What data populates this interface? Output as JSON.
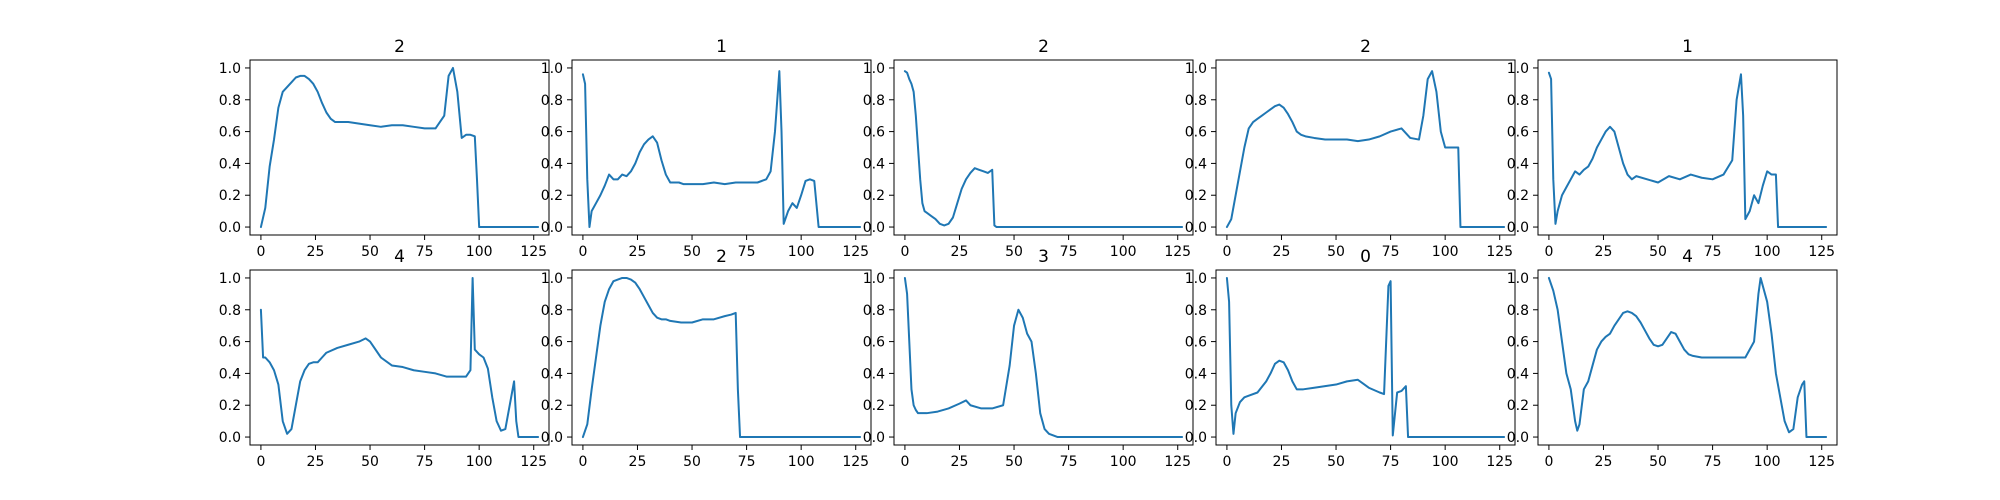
{
  "chart_data": [
    {
      "type": "line",
      "title": "2",
      "xlim": [
        -5,
        132
      ],
      "ylim": [
        -0.05,
        1.05
      ],
      "xticks": [
        0,
        25,
        50,
        75,
        100,
        125
      ],
      "yticks": [
        0.0,
        0.2,
        0.4,
        0.6,
        0.8,
        1.0
      ],
      "color": "#1f77b4",
      "x": [
        0,
        2,
        4,
        6,
        8,
        10,
        12,
        14,
        16,
        18,
        20,
        22,
        24,
        26,
        28,
        30,
        32,
        34,
        36,
        40,
        45,
        50,
        55,
        60,
        65,
        70,
        75,
        80,
        84,
        86,
        88,
        90,
        92,
        94,
        96,
        98,
        99,
        100,
        110,
        120,
        127
      ],
      "y": [
        0.0,
        0.12,
        0.38,
        0.55,
        0.75,
        0.85,
        0.88,
        0.91,
        0.94,
        0.95,
        0.95,
        0.93,
        0.9,
        0.85,
        0.78,
        0.72,
        0.68,
        0.66,
        0.66,
        0.66,
        0.65,
        0.64,
        0.63,
        0.64,
        0.64,
        0.63,
        0.62,
        0.62,
        0.7,
        0.95,
        1.0,
        0.85,
        0.56,
        0.58,
        0.58,
        0.57,
        0.3,
        0.0,
        0.0,
        0.0,
        0.0
      ]
    },
    {
      "type": "line",
      "title": "1",
      "xlim": [
        -5,
        132
      ],
      "ylim": [
        -0.05,
        1.05
      ],
      "xticks": [
        0,
        25,
        50,
        75,
        100,
        125
      ],
      "yticks": [
        0.0,
        0.2,
        0.4,
        0.6,
        0.8,
        1.0
      ],
      "color": "#1f77b4",
      "x": [
        0,
        1,
        2,
        3,
        4,
        6,
        8,
        10,
        12,
        14,
        16,
        18,
        20,
        22,
        24,
        26,
        28,
        30,
        32,
        34,
        36,
        38,
        40,
        42,
        44,
        46,
        50,
        55,
        60,
        65,
        70,
        75,
        80,
        84,
        86,
        88,
        90,
        91,
        92,
        94,
        96,
        98,
        100,
        102,
        104,
        106,
        108,
        110,
        115,
        120,
        127
      ],
      "y": [
        0.96,
        0.9,
        0.3,
        0.0,
        0.1,
        0.15,
        0.2,
        0.26,
        0.33,
        0.3,
        0.3,
        0.33,
        0.32,
        0.35,
        0.4,
        0.47,
        0.52,
        0.55,
        0.57,
        0.53,
        0.42,
        0.33,
        0.28,
        0.28,
        0.28,
        0.27,
        0.27,
        0.27,
        0.28,
        0.27,
        0.28,
        0.28,
        0.28,
        0.3,
        0.35,
        0.6,
        0.98,
        0.6,
        0.02,
        0.1,
        0.15,
        0.12,
        0.2,
        0.29,
        0.3,
        0.29,
        0.0,
        0.0,
        0.0,
        0.0,
        0.0
      ]
    },
    {
      "type": "line",
      "title": "2",
      "xlim": [
        -5,
        132
      ],
      "ylim": [
        -0.05,
        1.05
      ],
      "xticks": [
        0,
        25,
        50,
        75,
        100,
        125
      ],
      "yticks": [
        0.0,
        0.2,
        0.4,
        0.6,
        0.8,
        1.0
      ],
      "color": "#1f77b4",
      "x": [
        0,
        1,
        2,
        3,
        4,
        5,
        6,
        7,
        8,
        9,
        10,
        12,
        14,
        16,
        18,
        20,
        22,
        24,
        26,
        28,
        30,
        32,
        34,
        36,
        38,
        40,
        41,
        42,
        50,
        60,
        70,
        80,
        90,
        100,
        110,
        120,
        127
      ],
      "y": [
        0.98,
        0.97,
        0.93,
        0.9,
        0.85,
        0.7,
        0.5,
        0.3,
        0.15,
        0.1,
        0.09,
        0.07,
        0.05,
        0.02,
        0.01,
        0.02,
        0.06,
        0.15,
        0.24,
        0.3,
        0.34,
        0.37,
        0.36,
        0.35,
        0.34,
        0.36,
        0.01,
        0.0,
        0.0,
        0.0,
        0.0,
        0.0,
        0.0,
        0.0,
        0.0,
        0.0,
        0.0
      ]
    },
    {
      "type": "line",
      "title": "2",
      "xlim": [
        -5,
        132
      ],
      "ylim": [
        -0.05,
        1.05
      ],
      "xticks": [
        0,
        25,
        50,
        75,
        100,
        125
      ],
      "yticks": [
        0.0,
        0.2,
        0.4,
        0.6,
        0.8,
        1.0
      ],
      "color": "#1f77b4",
      "x": [
        0,
        2,
        4,
        6,
        8,
        10,
        12,
        14,
        16,
        18,
        20,
        22,
        24,
        26,
        28,
        30,
        32,
        34,
        36,
        40,
        45,
        50,
        55,
        60,
        65,
        70,
        75,
        80,
        84,
        88,
        90,
        92,
        94,
        96,
        98,
        100,
        104,
        106,
        107,
        110,
        120,
        127
      ],
      "y": [
        0.0,
        0.05,
        0.2,
        0.35,
        0.5,
        0.62,
        0.66,
        0.68,
        0.7,
        0.72,
        0.74,
        0.76,
        0.77,
        0.75,
        0.71,
        0.66,
        0.6,
        0.58,
        0.57,
        0.56,
        0.55,
        0.55,
        0.55,
        0.54,
        0.55,
        0.57,
        0.6,
        0.62,
        0.56,
        0.55,
        0.7,
        0.93,
        0.98,
        0.85,
        0.6,
        0.5,
        0.5,
        0.5,
        0.0,
        0.0,
        0.0,
        0.0
      ]
    },
    {
      "type": "line",
      "title": "1",
      "xlim": [
        -5,
        132
      ],
      "ylim": [
        -0.05,
        1.05
      ],
      "xticks": [
        0,
        25,
        50,
        75,
        100,
        125
      ],
      "yticks": [
        0.0,
        0.2,
        0.4,
        0.6,
        0.8,
        1.0
      ],
      "color": "#1f77b4",
      "x": [
        0,
        1,
        2,
        3,
        4,
        6,
        8,
        10,
        12,
        14,
        16,
        18,
        20,
        22,
        24,
        26,
        28,
        30,
        32,
        34,
        36,
        38,
        40,
        45,
        50,
        55,
        60,
        65,
        70,
        75,
        80,
        84,
        86,
        88,
        89,
        90,
        92,
        94,
        96,
        98,
        100,
        102,
        104,
        105,
        110,
        120,
        127
      ],
      "y": [
        0.97,
        0.93,
        0.3,
        0.02,
        0.1,
        0.2,
        0.25,
        0.3,
        0.35,
        0.33,
        0.36,
        0.38,
        0.43,
        0.5,
        0.55,
        0.6,
        0.63,
        0.6,
        0.5,
        0.4,
        0.33,
        0.3,
        0.32,
        0.3,
        0.28,
        0.32,
        0.3,
        0.33,
        0.31,
        0.3,
        0.33,
        0.42,
        0.8,
        0.96,
        0.7,
        0.05,
        0.1,
        0.2,
        0.15,
        0.26,
        0.35,
        0.33,
        0.33,
        0.0,
        0.0,
        0.0,
        0.0
      ]
    },
    {
      "type": "line",
      "title": "4",
      "xlim": [
        -5,
        132
      ],
      "ylim": [
        -0.05,
        1.05
      ],
      "xticks": [
        0,
        25,
        50,
        75,
        100,
        125
      ],
      "yticks": [
        0.0,
        0.2,
        0.4,
        0.6,
        0.8,
        1.0
      ],
      "color": "#1f77b4",
      "x": [
        0,
        1,
        2,
        4,
        6,
        8,
        10,
        12,
        14,
        16,
        18,
        20,
        22,
        24,
        26,
        28,
        30,
        35,
        40,
        45,
        48,
        50,
        55,
        60,
        65,
        70,
        75,
        80,
        85,
        90,
        94,
        96,
        97,
        98,
        100,
        102,
        104,
        106,
        108,
        110,
        112,
        114,
        116,
        117,
        118,
        120,
        127
      ],
      "y": [
        0.8,
        0.5,
        0.5,
        0.47,
        0.42,
        0.33,
        0.1,
        0.02,
        0.05,
        0.2,
        0.35,
        0.42,
        0.46,
        0.47,
        0.47,
        0.5,
        0.53,
        0.56,
        0.58,
        0.6,
        0.62,
        0.6,
        0.5,
        0.45,
        0.44,
        0.42,
        0.41,
        0.4,
        0.38,
        0.38,
        0.38,
        0.42,
        1.0,
        0.55,
        0.52,
        0.5,
        0.43,
        0.25,
        0.1,
        0.04,
        0.05,
        0.2,
        0.35,
        0.1,
        0.0,
        0.0,
        0.0
      ]
    },
    {
      "type": "line",
      "title": "2",
      "xlim": [
        -5,
        132
      ],
      "ylim": [
        -0.05,
        1.05
      ],
      "xticks": [
        0,
        25,
        50,
        75,
        100,
        125
      ],
      "yticks": [
        0.0,
        0.2,
        0.4,
        0.6,
        0.8,
        1.0
      ],
      "color": "#1f77b4",
      "x": [
        0,
        2,
        4,
        6,
        8,
        10,
        12,
        14,
        16,
        18,
        20,
        22,
        24,
        26,
        28,
        30,
        32,
        34,
        36,
        38,
        40,
        45,
        50,
        55,
        60,
        65,
        68,
        70,
        71,
        72,
        80,
        90,
        100,
        110,
        120,
        127
      ],
      "y": [
        0.0,
        0.08,
        0.3,
        0.5,
        0.7,
        0.85,
        0.93,
        0.98,
        0.99,
        1.0,
        1.0,
        0.99,
        0.97,
        0.93,
        0.88,
        0.83,
        0.78,
        0.75,
        0.74,
        0.74,
        0.73,
        0.72,
        0.72,
        0.74,
        0.74,
        0.76,
        0.77,
        0.78,
        0.3,
        0.0,
        0.0,
        0.0,
        0.0,
        0.0,
        0.0,
        0.0
      ]
    },
    {
      "type": "line",
      "title": "3",
      "xlim": [
        -5,
        132
      ],
      "ylim": [
        -0.05,
        1.05
      ],
      "xticks": [
        0,
        25,
        50,
        75,
        100,
        125
      ],
      "yticks": [
        0.0,
        0.2,
        0.4,
        0.6,
        0.8,
        1.0
      ],
      "color": "#1f77b4",
      "x": [
        0,
        1,
        2,
        3,
        4,
        5,
        6,
        8,
        10,
        15,
        20,
        25,
        28,
        30,
        35,
        40,
        45,
        48,
        50,
        52,
        54,
        56,
        58,
        60,
        62,
        64,
        66,
        70,
        75,
        80,
        90,
        100,
        110,
        120,
        127
      ],
      "y": [
        1.0,
        0.9,
        0.6,
        0.3,
        0.2,
        0.17,
        0.15,
        0.15,
        0.15,
        0.16,
        0.18,
        0.21,
        0.23,
        0.2,
        0.18,
        0.18,
        0.2,
        0.45,
        0.7,
        0.8,
        0.75,
        0.65,
        0.6,
        0.4,
        0.15,
        0.05,
        0.02,
        0.0,
        0.0,
        0.0,
        0.0,
        0.0,
        0.0,
        0.0,
        0.0
      ]
    },
    {
      "type": "line",
      "title": "0",
      "xlim": [
        -5,
        132
      ],
      "ylim": [
        -0.05,
        1.05
      ],
      "xticks": [
        0,
        25,
        50,
        75,
        100,
        125
      ],
      "yticks": [
        0.0,
        0.2,
        0.4,
        0.6,
        0.8,
        1.0
      ],
      "color": "#1f77b4",
      "x": [
        0,
        1,
        2,
        3,
        4,
        6,
        8,
        10,
        14,
        18,
        20,
        22,
        24,
        26,
        28,
        30,
        32,
        35,
        40,
        45,
        50,
        55,
        60,
        62,
        65,
        70,
        72,
        74,
        75,
        76,
        78,
        80,
        82,
        83,
        85,
        90,
        100,
        110,
        120,
        127
      ],
      "y": [
        1.0,
        0.85,
        0.2,
        0.02,
        0.15,
        0.22,
        0.25,
        0.26,
        0.28,
        0.35,
        0.4,
        0.46,
        0.48,
        0.47,
        0.42,
        0.35,
        0.3,
        0.3,
        0.31,
        0.32,
        0.33,
        0.35,
        0.36,
        0.34,
        0.31,
        0.28,
        0.27,
        0.95,
        0.98,
        0.01,
        0.28,
        0.29,
        0.32,
        0.0,
        0.0,
        0.0,
        0.0,
        0.0,
        0.0,
        0.0
      ]
    },
    {
      "type": "line",
      "title": "4",
      "xlim": [
        -5,
        132
      ],
      "ylim": [
        -0.05,
        1.05
      ],
      "xticks": [
        0,
        25,
        50,
        75,
        100,
        125
      ],
      "yticks": [
        0.0,
        0.2,
        0.4,
        0.6,
        0.8,
        1.0
      ],
      "color": "#1f77b4",
      "x": [
        0,
        2,
        4,
        6,
        8,
        10,
        12,
        13,
        14,
        16,
        18,
        20,
        22,
        24,
        26,
        28,
        30,
        32,
        34,
        36,
        38,
        40,
        42,
        44,
        46,
        48,
        50,
        52,
        54,
        56,
        58,
        60,
        62,
        64,
        66,
        70,
        75,
        80,
        85,
        90,
        94,
        96,
        97,
        98,
        100,
        102,
        104,
        106,
        108,
        110,
        112,
        114,
        116,
        117,
        118,
        120,
        127
      ],
      "y": [
        1.0,
        0.92,
        0.8,
        0.6,
        0.4,
        0.3,
        0.1,
        0.04,
        0.08,
        0.3,
        0.35,
        0.45,
        0.55,
        0.6,
        0.63,
        0.65,
        0.7,
        0.74,
        0.78,
        0.79,
        0.78,
        0.76,
        0.72,
        0.67,
        0.62,
        0.58,
        0.57,
        0.58,
        0.62,
        0.66,
        0.65,
        0.6,
        0.55,
        0.52,
        0.51,
        0.5,
        0.5,
        0.5,
        0.5,
        0.5,
        0.6,
        0.9,
        1.0,
        0.95,
        0.85,
        0.65,
        0.4,
        0.25,
        0.1,
        0.03,
        0.05,
        0.25,
        0.33,
        0.35,
        0.0,
        0.0,
        0.0
      ]
    }
  ]
}
